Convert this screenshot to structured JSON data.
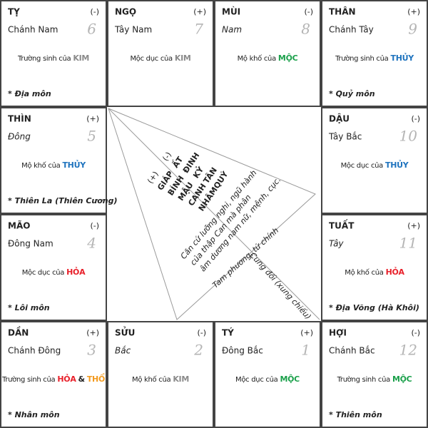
{
  "cells": [
    {
      "branch": "TỴ",
      "branch_color": "#e8202a",
      "sign": "(-)",
      "direction": "Chánh Nam",
      "italic": false,
      "number": 6,
      "stage": "Trường sinh của",
      "elements": [
        {
          "text": "KIM",
          "color": "#8a8a8a"
        }
      ],
      "note": "* Địa môn"
    },
    {
      "branch": "NGỌ",
      "branch_color": "#e8202a",
      "sign": "(+)",
      "direction": "Tây Nam",
      "italic": false,
      "number": 7,
      "stage": "Mộc dục của",
      "elements": [
        {
          "text": "KIM",
          "color": "#8a8a8a"
        }
      ]
    },
    {
      "branch": "MÙI",
      "branch_color": "#f39a1e",
      "sign": "(-)",
      "direction": "Nam",
      "italic": true,
      "number": 8,
      "stage": "Mộ khố của",
      "elements": [
        {
          "text": "MỘC",
          "color": "#1aa04a"
        }
      ]
    },
    {
      "branch": "THÂN",
      "branch_color": "#8a8a8a",
      "sign": "(+)",
      "direction": "Chánh Tây",
      "italic": false,
      "number": 9,
      "stage": "Trường sinh của",
      "elements": [
        {
          "text": "THỦY",
          "color": "#1e73be"
        }
      ],
      "note": "* Quỷ môn"
    },
    {
      "branch": "THÌN",
      "branch_color": "#f39a1e",
      "sign": "(+)",
      "direction": "Đông",
      "italic": true,
      "number": 5,
      "stage": "Mộ khố của",
      "elements": [
        {
          "text": "THỦY",
          "color": "#1e73be"
        }
      ],
      "note": "* Thiên La (Thiên Cương)"
    },
    {
      "branch": "DẬU",
      "branch_color": "#8a8a8a",
      "sign": "(-)",
      "direction": "Tây Bắc",
      "italic": false,
      "number": 10,
      "stage": "Mộc dục của",
      "elements": [
        {
          "text": "THỦY",
          "color": "#1e73be"
        }
      ]
    },
    {
      "branch": "MÃO",
      "branch_color": "#1aa04a",
      "sign": "(-)",
      "direction": "Đông Nam",
      "italic": false,
      "number": 4,
      "stage": "Mộc dục của",
      "elements": [
        {
          "text": "HỎA",
          "color": "#e8202a"
        }
      ],
      "note": "* Lôi môn"
    },
    {
      "branch": "TUẤT",
      "branch_color": "#f39a1e",
      "sign": "(+)",
      "direction": "Tây",
      "italic": true,
      "number": 11,
      "stage": "Mộ khố của",
      "elements": [
        {
          "text": "HỎA",
          "color": "#e8202a"
        }
      ],
      "note": "* Địa Võng (Hà Khôi)"
    },
    {
      "branch": "DẦN",
      "branch_color": "#1aa04a",
      "sign": "(+)",
      "direction": "Chánh Đông",
      "italic": false,
      "number": 3,
      "stage": "Trường sinh của",
      "elements": [
        {
          "text": "HỎA",
          "color": "#e8202a"
        },
        {
          "text": "&",
          "color": "#222222"
        },
        {
          "text": "THỔ",
          "color": "#f39a1e"
        }
      ],
      "note": "* Nhân môn"
    },
    {
      "branch": "SỬU",
      "branch_color": "#f39a1e",
      "sign": "(-)",
      "direction": "Bắc",
      "italic": true,
      "number": 2,
      "stage": "Mộ khố của",
      "elements": [
        {
          "text": "KIM",
          "color": "#8a8a8a"
        }
      ]
    },
    {
      "branch": "TÝ",
      "branch_color": "#1e73be",
      "sign": "(+)",
      "direction": "Đông Bắc",
      "italic": false,
      "number": 1,
      "stage": "Mộc dục của",
      "elements": [
        {
          "text": "MỘC",
          "color": "#1aa04a"
        }
      ]
    },
    {
      "branch": "HỢI",
      "branch_color": "#1e73be",
      "sign": "(-)",
      "direction": "Chánh Bắc",
      "italic": false,
      "number": 12,
      "stage": "Trường sinh của",
      "elements": [
        {
          "text": "MỘC",
          "color": "#1aa04a"
        }
      ],
      "note": "* Thiên môn"
    }
  ],
  "center": {
    "signs": [
      "(+)",
      "(-)"
    ],
    "stems": [
      {
        "yang": "GIÁP",
        "yin": "ẤT",
        "color": "#1aa04a"
      },
      {
        "yang": "BÍNH",
        "yin": "ĐINH",
        "color": "#e8202a"
      },
      {
        "yang": "MẬU",
        "yin": "KỶ",
        "color": "#f39a1e"
      },
      {
        "yang": "CANH",
        "yin": "TÂN",
        "color": "#8a8a8a"
      },
      {
        "yang": "NHÂM",
        "yin": "QUÝ",
        "color": "#1e73be"
      }
    ],
    "explanation": [
      "Căn cứ lưỡng nghi, ngũ hành",
      "của thập Can mà phân",
      "âm dương nam nữ, mệnh, cục."
    ],
    "triangle_label": "Tam phương, tứ chính",
    "opposite_label": "Cung đối (xung chiếu)"
  }
}
